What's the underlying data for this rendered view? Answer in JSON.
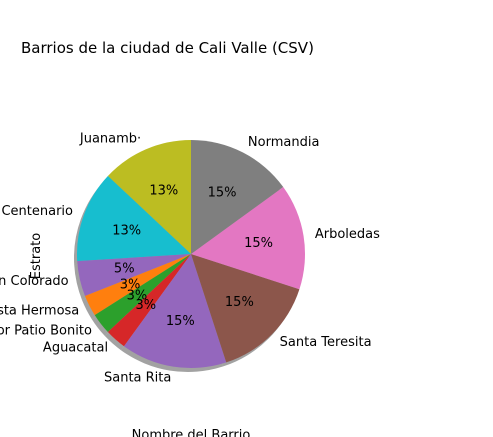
{
  "chart_data": {
    "type": "pie",
    "title": "Barrios de la ciudad de Cali Valle (CSV)",
    "ylabel": "Estrato",
    "xlabel": "Nombre del Barrio",
    "shadow": true,
    "start_angle_deg": 90,
    "direction": "counterclockwise",
    "slices": [
      {
        "label": "Juanamb·",
        "value": 13,
        "pct_label": "13%",
        "color": "#bcbd22"
      },
      {
        "label": "Centenario",
        "value": 13,
        "pct_label": "13%",
        "color": "#17becf"
      },
      {
        "label": "n Colorado",
        "value": 5,
        "pct_label": "5%",
        "color": "#9467bd"
      },
      {
        "label": "sta Hermosa",
        "value": 3,
        "pct_label": "3%",
        "color": "#ff7f0e"
      },
      {
        "label": "or Patio Bonito",
        "value": 3,
        "pct_label": "3%",
        "color": "#2ca02c"
      },
      {
        "label": "Aguacatal",
        "value": 3,
        "pct_label": "3%",
        "color": "#d62728"
      },
      {
        "label": "Santa Rita",
        "value": 15,
        "pct_label": "15%",
        "color": "#9467bd"
      },
      {
        "label": "Santa Teresita",
        "value": 15,
        "pct_label": "15%",
        "color": "#8c564b"
      },
      {
        "label": "Arboledas",
        "value": 15,
        "pct_label": "15%",
        "color": "#e377c2"
      },
      {
        "label": "Normandia",
        "value": 15,
        "pct_label": "15%",
        "color": "#7f7f7f"
      }
    ]
  }
}
